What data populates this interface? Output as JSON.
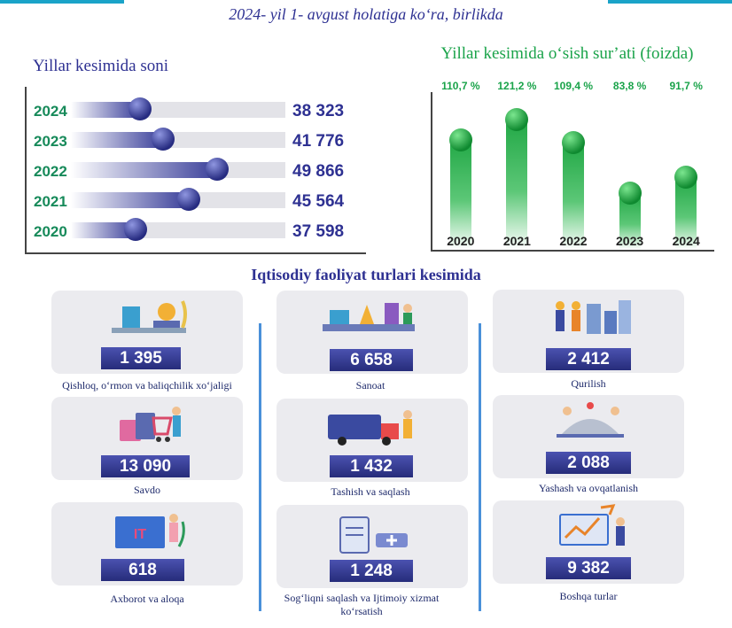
{
  "header": {
    "title": "2024- yil 1- avgust holatiga koʻra, birlikda"
  },
  "left_panel": {
    "title": "Yillar kesimida soni"
  },
  "right_panel": {
    "title": "Yillar kesimida oʻsish surʼati (foizda)"
  },
  "sectors_title": "Iqtisodiy faoliyat turlari kesimida",
  "chart_data": [
    {
      "type": "bar",
      "orientation": "horizontal",
      "title": "Yillar kesimida soni",
      "categories": [
        "2024",
        "2023",
        "2022",
        "2021",
        "2020"
      ],
      "values": [
        38323,
        41776,
        49866,
        45564,
        37598
      ],
      "value_labels": [
        "38 323",
        "41 776",
        "49 866",
        "45 564",
        "37 598"
      ],
      "xlim": [
        28000,
        60000
      ],
      "grid": false,
      "colors": {
        "bar": "#3a3f9a",
        "track": "#e3e3e8",
        "year": "#178a5a",
        "value": "#2e3192"
      }
    },
    {
      "type": "bar",
      "orientation": "vertical",
      "title": "Yillar kesimida oʻsish surʼati (foizda)",
      "categories": [
        "2020",
        "2021",
        "2022",
        "2023",
        "2024"
      ],
      "values": [
        110.7,
        121.2,
        109.4,
        83.8,
        91.7
      ],
      "value_labels": [
        "110,7 %",
        "121,2 %",
        "109,4 %",
        "83,8 %",
        "91,7 %"
      ],
      "ylim": [
        55,
        135
      ],
      "grid": false,
      "colors": {
        "bar": "#22a846",
        "label": "#1aa34a"
      }
    }
  ],
  "sectors": [
    {
      "value": "1 395",
      "label": "Qishloq, oʻrmon va baliqchilik xoʻjaligi",
      "icon": "agriculture-illustration"
    },
    {
      "value": "13 090",
      "label": "Savdo",
      "icon": "shopping-illustration"
    },
    {
      "value": "618",
      "label": "Axborot va aloqa",
      "icon": "it-illustration"
    },
    {
      "value": "6 658",
      "label": "Sanoat",
      "icon": "industry-illustration"
    },
    {
      "value": "1 432",
      "label": "Tashish va saqlash",
      "icon": "transport-illustration"
    },
    {
      "value": "1 248",
      "label": "Sogʻliqni saqlash va Ijtimoiy xizmat koʻrsatish",
      "icon": "health-illustration"
    },
    {
      "value": "2 412",
      "label": "Qurilish",
      "icon": "construction-illustration"
    },
    {
      "value": "2 088",
      "label": "Yashash va ovqatlanish",
      "icon": "hospitality-illustration"
    },
    {
      "value": "9 382",
      "label": "Boshqa turlar",
      "icon": "other-illustration"
    }
  ]
}
